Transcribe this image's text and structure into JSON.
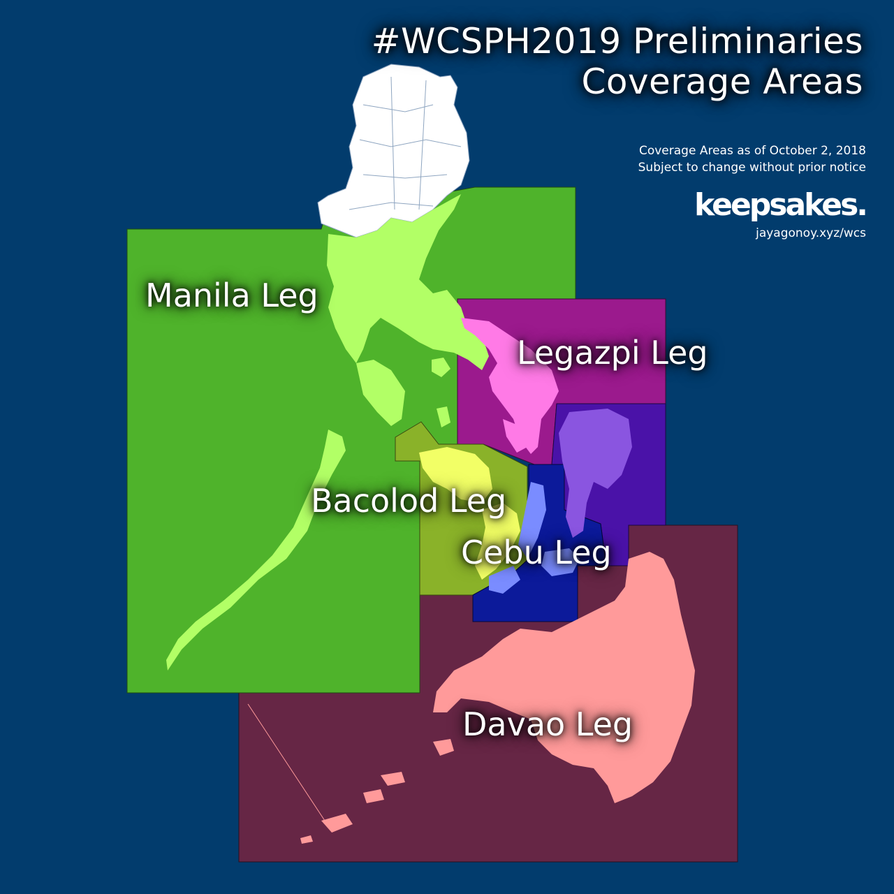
{
  "title_line1": "#WCSPH2019 Preliminaries",
  "title_line2": "Coverage Areas",
  "subtitle_line1": "Coverage Areas as of October 2, 2018",
  "subtitle_line2": "Subject to change without prior notice",
  "brand": "keepsakes.",
  "url": "jayagonoy.xyz/wcs",
  "legs": {
    "manila": {
      "label": "Manila Leg",
      "color": "#4fb32b",
      "land": "#b2ff66"
    },
    "legazpi": {
      "label": "Legazpi Leg",
      "color": "#9b1a8d",
      "land": "#ff7ae6"
    },
    "bacolod": {
      "label": "Bacolod Leg",
      "color": "#8ab229",
      "land": "#f2ff66"
    },
    "cebu": {
      "label": "Cebu Leg",
      "color": "#0c1a9a",
      "land": "#7a8cff"
    },
    "eastvisayas": {
      "color": "#4a12a8",
      "land": "#8a55e0"
    },
    "davao": {
      "label": "Davao Leg",
      "color": "#662645",
      "land": "#ff9a9a"
    }
  },
  "ocean_color": "#023c6d"
}
